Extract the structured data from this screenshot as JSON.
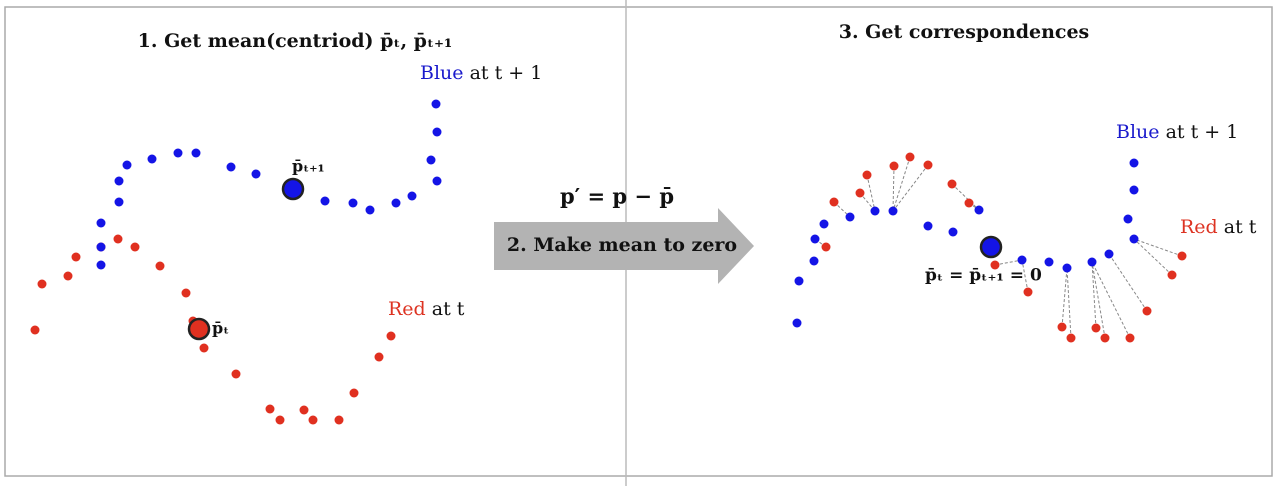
{
  "left": {
    "title": "1. Get mean(centriod) p̄ₜ, p̄ₜ₊₁",
    "blue_label": {
      "word": "Blue",
      "rest": "at t + 1"
    },
    "blue_centroid": "p̄ₜ₊₁",
    "red_label": {
      "word": "Red",
      "rest": "at t"
    },
    "red_centroid": "p̄ₜ"
  },
  "middle": {
    "formula": "p′ = p − p̄",
    "step": "2. Make mean to zero"
  },
  "right": {
    "title": "3. Get correspondences",
    "blue_label": {
      "word": "Blue",
      "rest": "at t + 1"
    },
    "red_label": {
      "word": "Red",
      "rest": "at t"
    },
    "centroid": "p̄ₜ = p̄ₜ₊₁ = 0"
  }
}
